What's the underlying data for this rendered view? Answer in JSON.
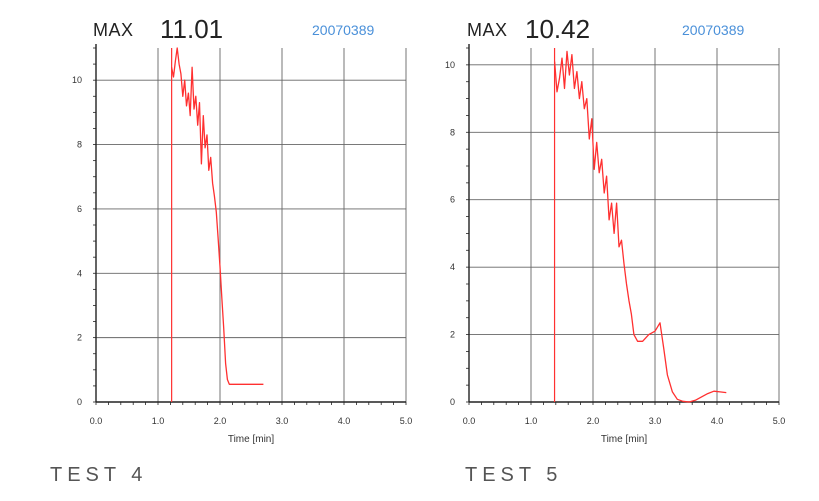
{
  "chart_data": [
    {
      "type": "line",
      "max_label": "MAX",
      "max_value": "11.01",
      "serial": "20070389",
      "test_label": "TEST 4",
      "xlabel": "Time [min]",
      "ylabel": "",
      "xlim": [
        0,
        5
      ],
      "ylim": [
        0,
        11
      ],
      "x_ticks": [
        "0.0",
        "1.0",
        "2.0",
        "3.0",
        "4.0",
        "5.0"
      ],
      "y_ticks": [
        "0",
        "2",
        "4",
        "6",
        "8",
        "10"
      ],
      "grid": true,
      "series_color": "#ff3030",
      "vertical_marker_x": 1.22,
      "x": [
        1.22,
        1.25,
        1.28,
        1.31,
        1.34,
        1.37,
        1.4,
        1.43,
        1.46,
        1.49,
        1.52,
        1.55,
        1.58,
        1.61,
        1.64,
        1.67,
        1.7,
        1.73,
        1.76,
        1.79,
        1.82,
        1.85,
        1.88,
        1.91,
        1.94,
        1.97,
        2.0,
        2.03,
        2.06,
        2.09,
        2.12,
        2.15,
        2.25,
        2.4,
        2.55,
        2.7
      ],
      "y": [
        10.4,
        10.1,
        10.6,
        11.0,
        10.5,
        10.2,
        9.5,
        10.0,
        9.2,
        9.6,
        8.9,
        10.4,
        9.1,
        9.5,
        8.6,
        9.3,
        7.4,
        8.9,
        7.9,
        8.3,
        7.2,
        7.6,
        6.8,
        6.4,
        5.9,
        5.1,
        4.2,
        3.2,
        2.3,
        1.2,
        0.7,
        0.55,
        0.55,
        0.55,
        0.55,
        0.55
      ]
    },
    {
      "type": "line",
      "max_label": "MAX",
      "max_value": "10.42",
      "serial": "20070389",
      "test_label": "TEST 5",
      "xlabel": "Time [min]",
      "ylabel": "",
      "xlim": [
        0,
        5
      ],
      "ylim": [
        0,
        10.5
      ],
      "x_ticks": [
        "0.0",
        "1.0",
        "2.0",
        "3.0",
        "4.0",
        "5.0"
      ],
      "y_ticks": [
        "0",
        "2",
        "4",
        "6",
        "8",
        "10"
      ],
      "grid": true,
      "series_color": "#ff3030",
      "vertical_marker_x": 1.38,
      "x": [
        1.38,
        1.42,
        1.46,
        1.5,
        1.54,
        1.58,
        1.62,
        1.66,
        1.7,
        1.74,
        1.78,
        1.82,
        1.86,
        1.9,
        1.94,
        1.98,
        2.02,
        2.06,
        2.1,
        2.14,
        2.18,
        2.22,
        2.26,
        2.3,
        2.34,
        2.38,
        2.42,
        2.46,
        2.5,
        2.54,
        2.58,
        2.62,
        2.66,
        2.72,
        2.8,
        2.9,
        3.0,
        3.08,
        3.14,
        3.2,
        3.28,
        3.36,
        3.45,
        3.55,
        3.65,
        3.75,
        3.85,
        3.95,
        4.05,
        4.15
      ],
      "y": [
        10.1,
        9.2,
        9.6,
        10.2,
        9.3,
        10.4,
        9.7,
        10.3,
        9.3,
        9.8,
        9.0,
        9.5,
        8.7,
        9.0,
        7.8,
        8.4,
        6.9,
        7.7,
        6.8,
        7.2,
        6.2,
        6.7,
        5.4,
        5.9,
        5.0,
        5.9,
        4.6,
        4.8,
        4.1,
        3.5,
        3.0,
        2.6,
        2.0,
        1.8,
        1.8,
        2.0,
        2.1,
        2.35,
        1.6,
        0.8,
        0.3,
        0.08,
        0.02,
        0.0,
        0.05,
        0.15,
        0.25,
        0.32,
        0.3,
        0.28
      ]
    }
  ]
}
